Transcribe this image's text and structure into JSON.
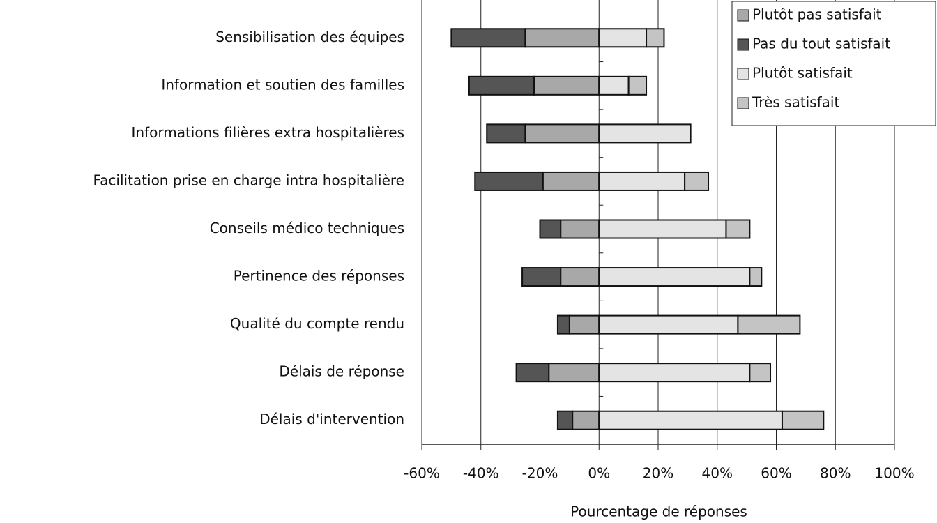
{
  "chart_data": {
    "type": "bar",
    "orientation": "horizontal",
    "stacked": true,
    "x_label": "Pourcentage de réponses",
    "categories": [
      "Sensibilisation des équipes",
      "Information et soutien des familles",
      "Informations filières extra hospitalières",
      "Facilitation prise en charge intra hospitalière",
      "Conseils médico techniques",
      "Pertinence des réponses",
      "Qualité du compte rendu",
      "Délais de réponse",
      "Délais d'intervention"
    ],
    "series": [
      {
        "name": "Plutôt pas satisfait",
        "color": "#a8a8a8",
        "values": [
          -25,
          -22,
          -25,
          -19,
          -13,
          -13,
          -10,
          -17,
          -9
        ]
      },
      {
        "name": "Pas du tout satisfait",
        "color": "#555555",
        "values": [
          -25,
          -22,
          -13,
          -23,
          -7,
          -13,
          -4,
          -11,
          -5
        ]
      },
      {
        "name": "Plutôt satisfait",
        "color": "#e4e4e4",
        "values": [
          16,
          10,
          31,
          29,
          43,
          51,
          47,
          51,
          62
        ]
      },
      {
        "name": "Très satisfait",
        "color": "#c4c4c4",
        "values": [
          6,
          6,
          0,
          8,
          8,
          4,
          21,
          7,
          14
        ]
      }
    ],
    "xlim": [
      -60,
      100
    ],
    "xticks": [
      {
        "value": -60,
        "label": "-60%"
      },
      {
        "value": -40,
        "label": "-40%"
      },
      {
        "value": -20,
        "label": "-20%"
      },
      {
        "value": 0,
        "label": "0%"
      },
      {
        "value": 20,
        "label": "20%"
      },
      {
        "value": 40,
        "label": "40%"
      },
      {
        "value": 60,
        "label": "60%"
      },
      {
        "value": 80,
        "label": "80%"
      },
      {
        "value": 100,
        "label": "100%"
      }
    ],
    "grid": true,
    "legend": "top-right"
  }
}
